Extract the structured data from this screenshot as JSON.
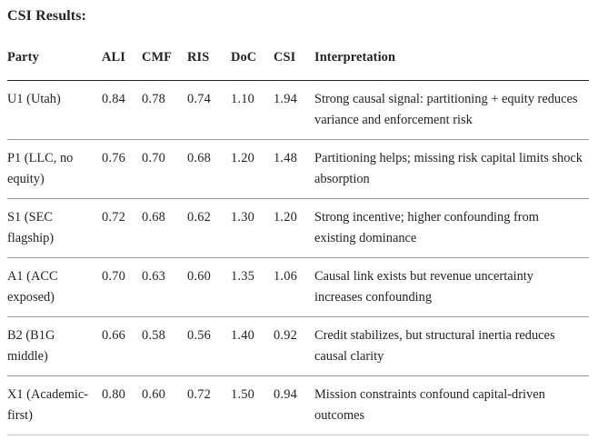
{
  "title": "CSI Results:",
  "colors": {
    "background": "#ffffff",
    "text": "#242424",
    "header_rule": "#242424",
    "row_rule": "#9c9c9c",
    "bottom_rule": "#c9c9c9"
  },
  "table": {
    "headers": [
      "Party",
      "ALI",
      "CMF",
      "RIS",
      "DoC",
      "CSI",
      "Interpretation"
    ],
    "rows": [
      {
        "party": "U1 (Utah)",
        "ali": "0.84",
        "cmf": "0.78",
        "ris": "0.74",
        "doc": "1.10",
        "csi": "1.94",
        "interpretation": "Strong causal signal: partitioning + equity reduces variance and enforcement risk"
      },
      {
        "party": "P1 (LLC, no equity)",
        "ali": "0.76",
        "cmf": "0.70",
        "ris": "0.68",
        "doc": "1.20",
        "csi": "1.48",
        "interpretation": "Partitioning helps; missing risk capital limits shock absorption"
      },
      {
        "party": "S1 (SEC flagship)",
        "ali": "0.72",
        "cmf": "0.68",
        "ris": "0.62",
        "doc": "1.30",
        "csi": "1.20",
        "interpretation": "Strong incentive; higher confounding from existing dominance"
      },
      {
        "party": "A1 (ACC exposed)",
        "ali": "0.70",
        "cmf": "0.63",
        "ris": "0.60",
        "doc": "1.35",
        "csi": "1.06",
        "interpretation": "Causal link exists but revenue uncertainty increases confounding"
      },
      {
        "party": "B2 (B1G middle)",
        "ali": "0.66",
        "cmf": "0.58",
        "ris": "0.56",
        "doc": "1.40",
        "csi": "0.92",
        "interpretation": "Credit stabilizes, but structural inertia reduces causal clarity"
      },
      {
        "party": "X1 (Academic-first)",
        "ali": "0.80",
        "cmf": "0.60",
        "ris": "0.72",
        "doc": "1.50",
        "csi": "0.94",
        "interpretation": "Mission constraints confound capital-driven outcomes"
      }
    ]
  }
}
